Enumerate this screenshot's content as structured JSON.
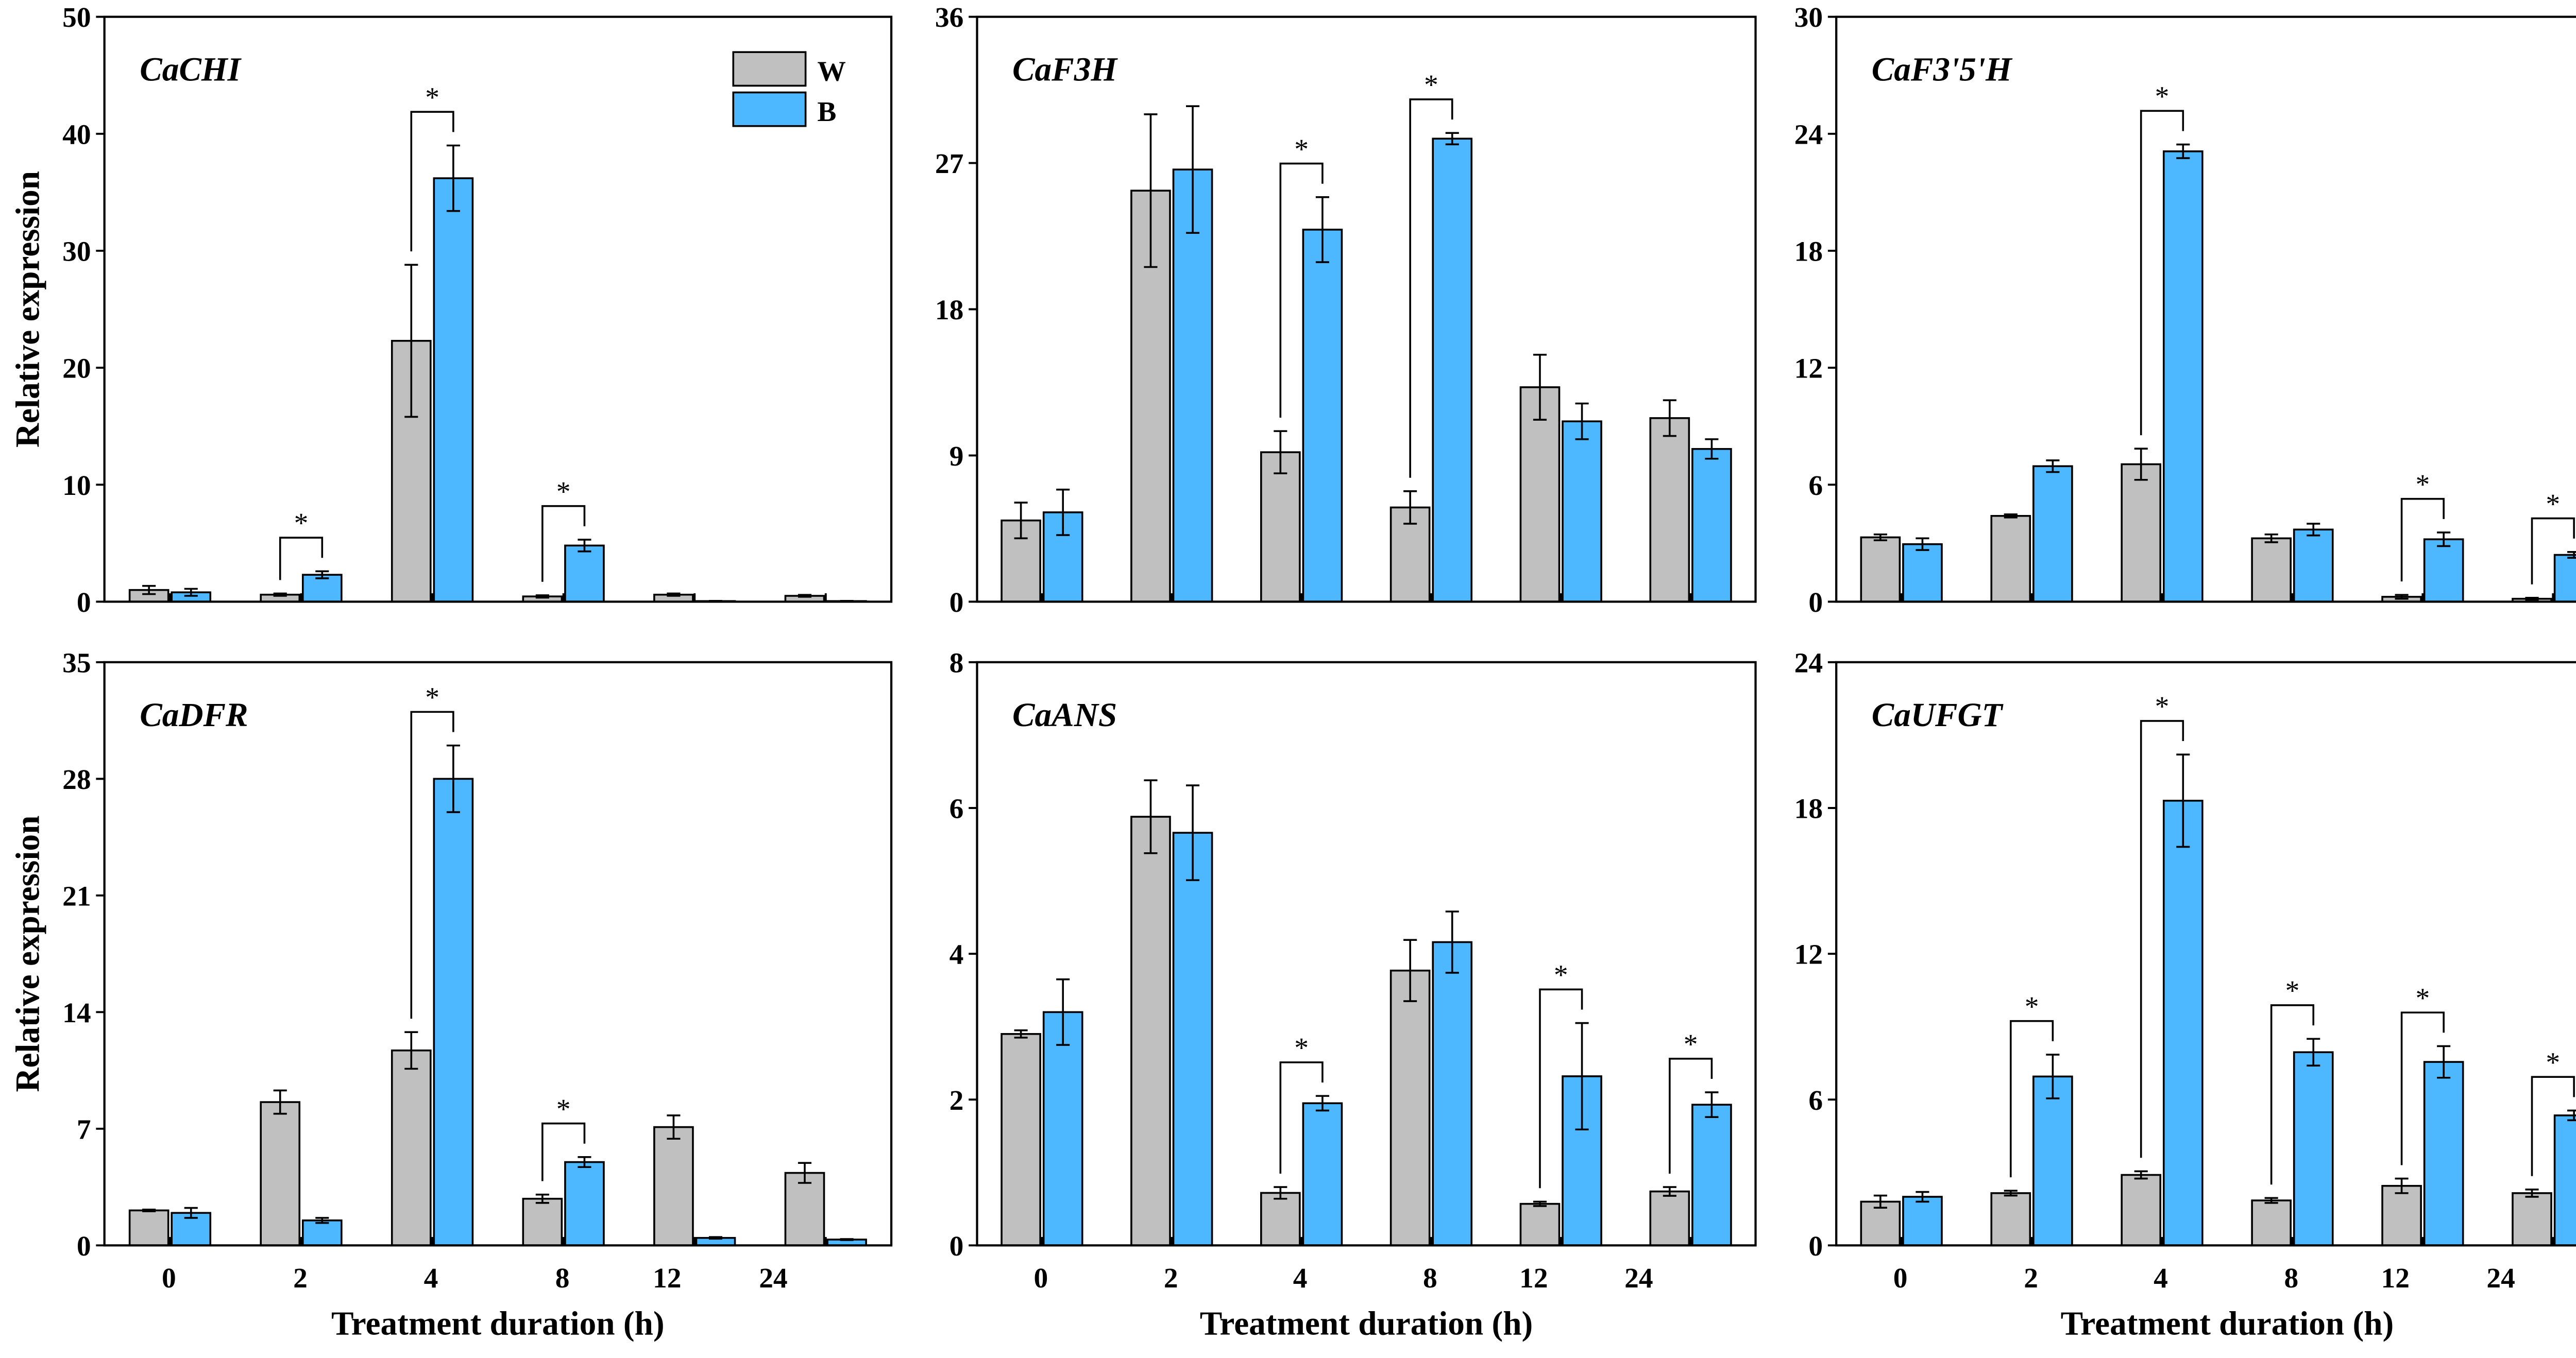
{
  "chart_data": [
    {
      "type": "bar",
      "title": "CaCHI",
      "xlabel": "",
      "ylabel": "Relative expression",
      "categories": [
        "0",
        "2",
        "4",
        "8",
        "12",
        "24"
      ],
      "ylim": [
        0,
        50
      ],
      "yticks": [
        0,
        10,
        20,
        30,
        40,
        50
      ],
      "legend": "top-right",
      "series": [
        {
          "name": "W",
          "color": "#C0C0C0",
          "values": [
            1.0,
            0.6,
            22.3,
            0.45,
            0.6,
            0.5
          ],
          "errors": [
            0.35,
            0.1,
            6.5,
            0.1,
            0.1,
            0.08
          ]
        },
        {
          "name": "B",
          "color": "#4DB8FF",
          "values": [
            0.8,
            2.3,
            36.2,
            4.8,
            0.05,
            0.05
          ],
          "errors": [
            0.3,
            0.3,
            2.8,
            0.5,
            0.02,
            0.02
          ]
        }
      ],
      "significant": [
        false,
        true,
        true,
        true,
        false,
        false
      ],
      "significance_marker": "*"
    },
    {
      "type": "bar",
      "title": "CaF3H",
      "xlabel": "",
      "ylabel": "",
      "categories": [
        "0",
        "2",
        "4",
        "8",
        "12",
        "24"
      ],
      "ylim": [
        0,
        36
      ],
      "yticks": [
        0,
        9,
        18,
        27,
        36
      ],
      "series": [
        {
          "name": "W",
          "color": "#C0C0C0",
          "values": [
            5.0,
            25.3,
            9.2,
            5.8,
            13.2,
            11.3
          ],
          "errors": [
            1.1,
            4.7,
            1.3,
            1.0,
            2.0,
            1.1
          ]
        },
        {
          "name": "B",
          "color": "#4DB8FF",
          "values": [
            5.5,
            26.6,
            22.9,
            28.5,
            11.1,
            9.4
          ],
          "errors": [
            1.4,
            3.9,
            2.0,
            0.35,
            1.1,
            0.6
          ]
        }
      ],
      "significant": [
        false,
        false,
        true,
        true,
        false,
        false
      ],
      "significance_marker": "*"
    },
    {
      "type": "bar",
      "title": "CaF3'5'H",
      "xlabel": "",
      "ylabel": "",
      "categories": [
        "0",
        "2",
        "4",
        "8",
        "12",
        "24"
      ],
      "ylim": [
        0,
        30
      ],
      "yticks": [
        0,
        6,
        12,
        18,
        24,
        30
      ],
      "series": [
        {
          "name": "W",
          "color": "#C0C0C0",
          "values": [
            3.3,
            4.4,
            7.05,
            3.25,
            0.25,
            0.15
          ],
          "errors": [
            0.15,
            0.08,
            0.8,
            0.2,
            0.1,
            0.05
          ]
        },
        {
          "name": "B",
          "color": "#4DB8FF",
          "values": [
            2.95,
            6.95,
            23.1,
            3.7,
            3.2,
            2.4
          ],
          "errors": [
            0.3,
            0.3,
            0.35,
            0.3,
            0.35,
            0.15
          ]
        }
      ],
      "significant": [
        false,
        false,
        true,
        false,
        true,
        true
      ],
      "significance_marker": "*"
    },
    {
      "type": "bar",
      "title": "CaDFR",
      "xlabel": "Treatment duration (h)",
      "ylabel": "Relative expression",
      "categories": [
        "0",
        "2",
        "4",
        "8",
        "12",
        "24"
      ],
      "ylim": [
        0,
        35
      ],
      "yticks": [
        0,
        7,
        14,
        21,
        28,
        35
      ],
      "series": [
        {
          "name": "W",
          "color": "#C0C0C0",
          "values": [
            2.1,
            8.6,
            11.7,
            2.8,
            7.1,
            4.35
          ],
          "errors": [
            0.05,
            0.7,
            1.1,
            0.25,
            0.7,
            0.6
          ]
        },
        {
          "name": "B",
          "color": "#4DB8FF",
          "values": [
            1.95,
            1.5,
            28.0,
            5.0,
            0.45,
            0.35
          ],
          "errors": [
            0.3,
            0.15,
            2.0,
            0.3,
            0.05,
            0.03
          ]
        }
      ],
      "significant": [
        false,
        false,
        true,
        true,
        false,
        false
      ],
      "significance_marker": "*"
    },
    {
      "type": "bar",
      "title": "CaANS",
      "xlabel": "Treatment duration (h)",
      "ylabel": "",
      "categories": [
        "0",
        "2",
        "4",
        "8",
        "12",
        "24"
      ],
      "ylim": [
        0,
        8
      ],
      "yticks": [
        0,
        2,
        4,
        6,
        8
      ],
      "series": [
        {
          "name": "W",
          "color": "#C0C0C0",
          "values": [
            2.9,
            5.88,
            0.72,
            3.77,
            0.57,
            0.74
          ],
          "errors": [
            0.05,
            0.5,
            0.08,
            0.42,
            0.03,
            0.06
          ]
        },
        {
          "name": "B",
          "color": "#4DB8FF",
          "values": [
            3.2,
            5.66,
            1.95,
            4.16,
            2.32,
            1.93
          ],
          "errors": [
            0.45,
            0.65,
            0.1,
            0.42,
            0.73,
            0.17
          ]
        }
      ],
      "significant": [
        false,
        false,
        true,
        false,
        true,
        true
      ],
      "significance_marker": "*"
    },
    {
      "type": "bar",
      "title": "CaUFGT",
      "xlabel": "Treatment duration (h)",
      "ylabel": "",
      "categories": [
        "0",
        "2",
        "4",
        "8",
        "12",
        "24"
      ],
      "ylim": [
        0,
        24
      ],
      "yticks": [
        0,
        6,
        12,
        18,
        24
      ],
      "series": [
        {
          "name": "W",
          "color": "#C0C0C0",
          "values": [
            1.8,
            2.15,
            2.9,
            1.85,
            2.45,
            2.15
          ],
          "errors": [
            0.25,
            0.1,
            0.15,
            0.1,
            0.3,
            0.15
          ]
        },
        {
          "name": "B",
          "color": "#4DB8FF",
          "values": [
            2.0,
            6.95,
            18.3,
            7.95,
            7.55,
            5.35
          ],
          "errors": [
            0.2,
            0.9,
            1.9,
            0.55,
            0.65,
            0.2
          ]
        }
      ],
      "significant": [
        false,
        true,
        true,
        true,
        true,
        true
      ],
      "significance_marker": "*"
    }
  ]
}
